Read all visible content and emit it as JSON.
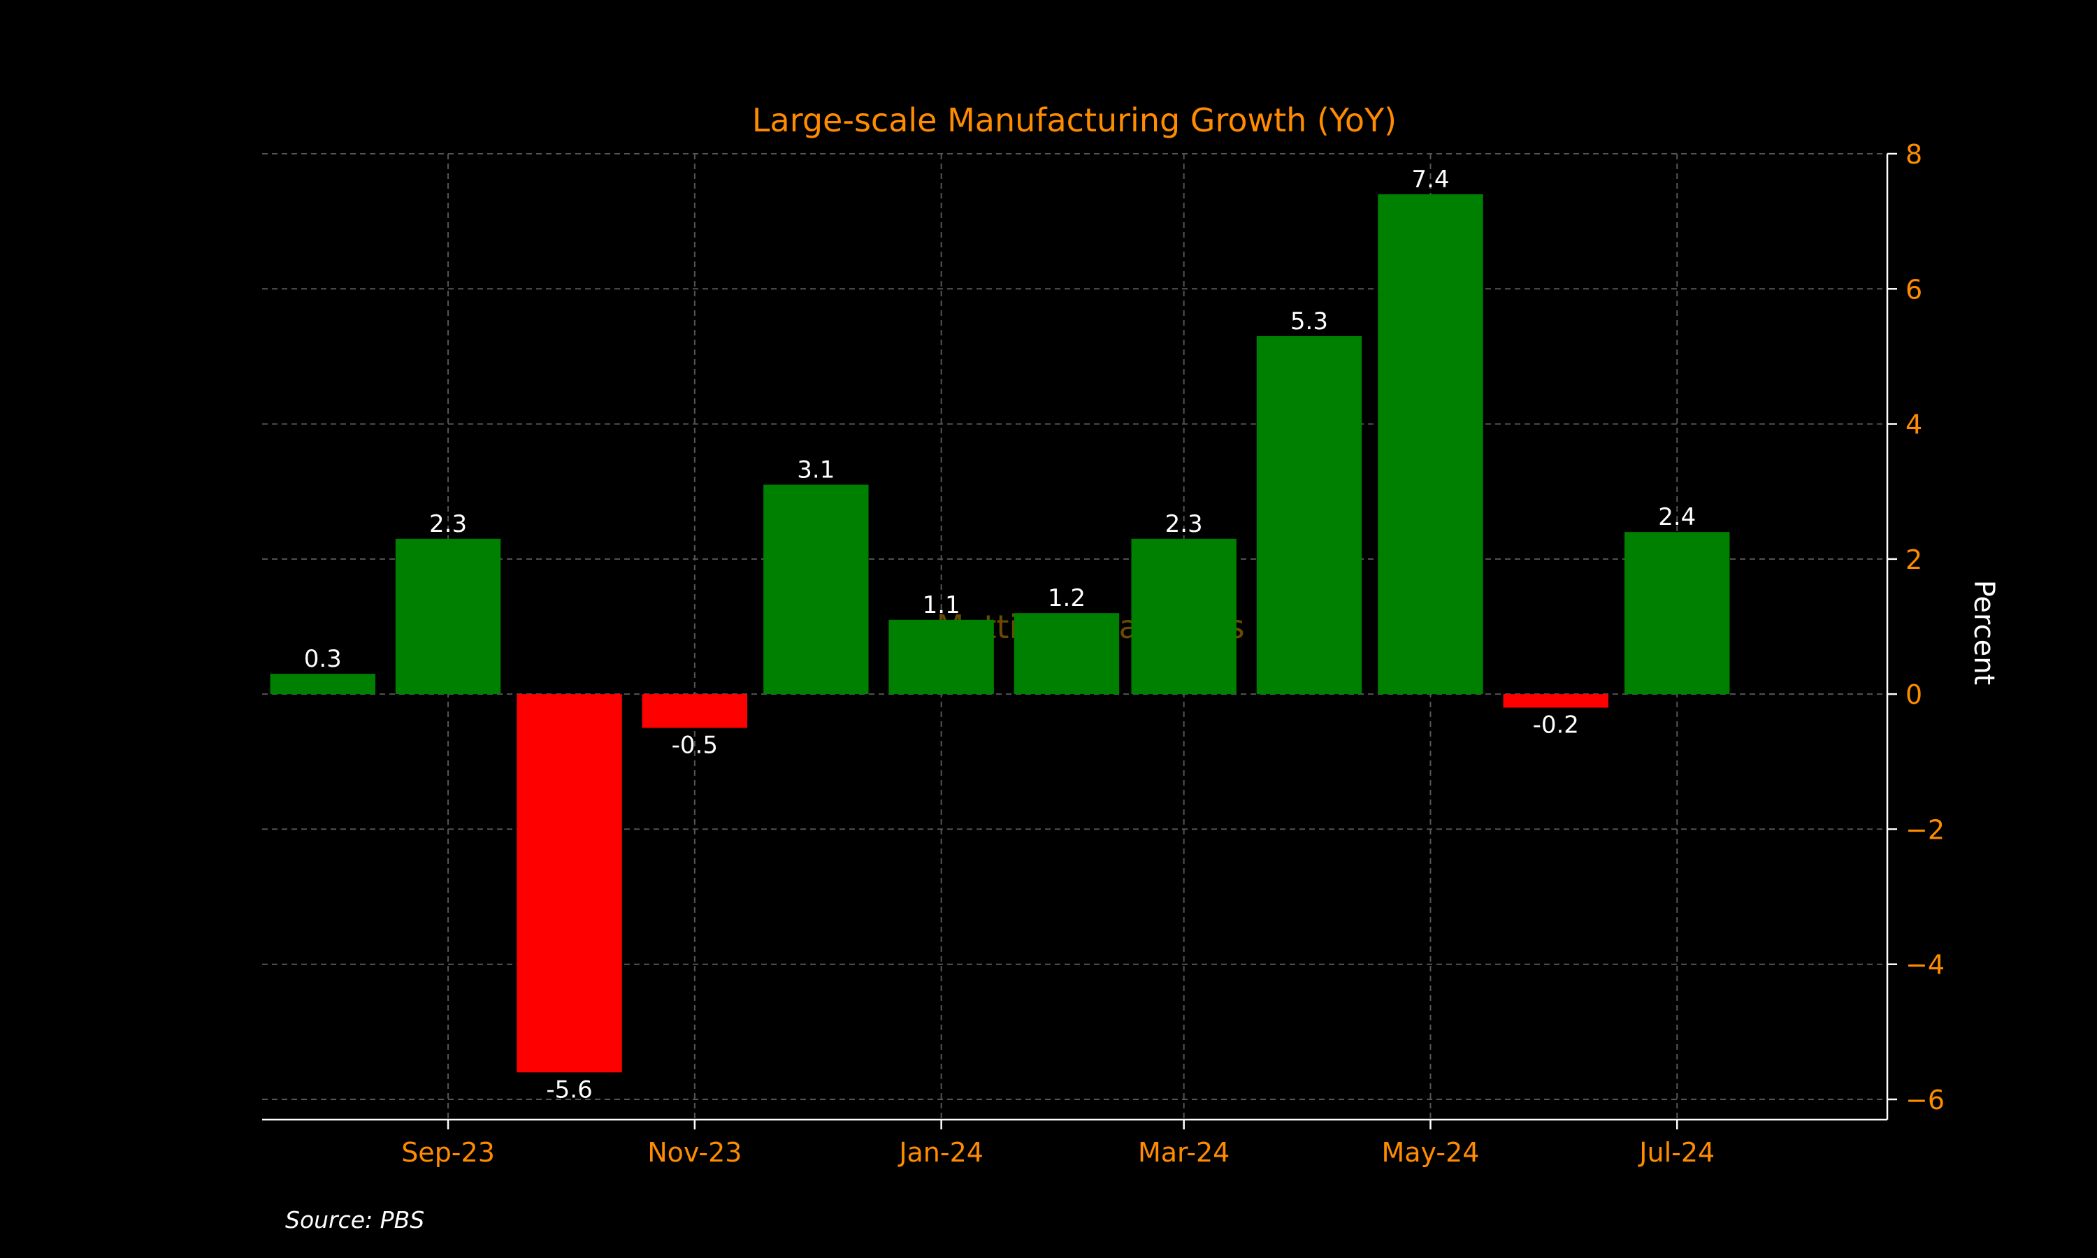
{
  "colors": {
    "background": "#000000",
    "accent": "#ff8c00",
    "axis": "#ffffff",
    "grid": "#555555",
    "positive": "#008000",
    "negative": "#ff0000",
    "watermark": "#6a4a00",
    "label": "#ffffff"
  },
  "watermark": "Mettis Global News",
  "source": "Source: PBS",
  "chart_data": {
    "type": "bar",
    "title": "Large-scale Manufacturing Growth (YoY)",
    "xlabel": "",
    "ylabel": "Percent",
    "ylim": [
      -6.3,
      8
    ],
    "yticks": [
      8,
      6,
      4,
      2,
      0,
      -2,
      -4,
      -6
    ],
    "ytick_labels": [
      "8",
      "6",
      "4",
      "2",
      "0",
      "−2",
      "−4",
      "−6"
    ],
    "y_axis_position": "right",
    "grid": true,
    "xlim": [
      "2023-07-17",
      "2024-08-22"
    ],
    "categories": [
      "2023-08-01",
      "2023-09-01",
      "2023-10-01",
      "2023-11-01",
      "2023-12-01",
      "2024-01-01",
      "2024-02-01",
      "2024-03-01",
      "2024-04-01",
      "2024-05-01",
      "2024-06-01",
      "2024-07-01"
    ],
    "values": [
      0.3,
      2.3,
      -5.6,
      -0.5,
      3.1,
      1.1,
      1.2,
      2.3,
      5.3,
      7.4,
      -0.2,
      2.4
    ],
    "value_labels": [
      "0.3",
      "2.3",
      "-5.6",
      "-0.5",
      "3.1",
      "1.1",
      "1.2",
      "2.3",
      "5.3",
      "7.4",
      "-0.2",
      "2.4"
    ],
    "xticks": [
      "2023-09-01",
      "2023-11-01",
      "2024-01-01",
      "2024-03-01",
      "2024-05-01",
      "2024-07-01"
    ],
    "xtick_labels": [
      "Sep-23",
      "Nov-23",
      "Jan-24",
      "Mar-24",
      "May-24",
      "Jul-24"
    ]
  }
}
